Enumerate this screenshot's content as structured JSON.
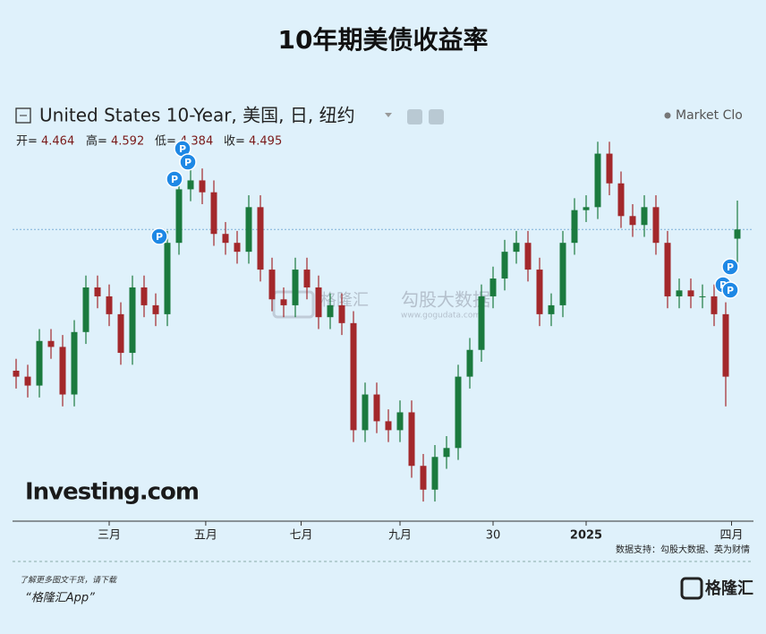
{
  "page_title": "10年期美债收益率",
  "chart_data": {
    "type": "candlestick",
    "header": "United States 10-Year, 美国, 日, 纽约",
    "status": "Market Clo",
    "ohlc_labels": {
      "open": "开=",
      "high": "高=",
      "low": "低=",
      "close": "收="
    },
    "up_color": "#1b7a3e",
    "down_color": "#a3282b",
    "last_price_line": true,
    "event_marker": "P",
    "source_logo": "Investing.com",
    "open": [
      4.02,
      4.0,
      3.97,
      4.12,
      4.1,
      3.94,
      4.15,
      4.3,
      4.27,
      4.21,
      4.08,
      4.3,
      4.24,
      4.21,
      4.45,
      4.63,
      4.66,
      4.62,
      4.48,
      4.45,
      4.42,
      4.57,
      4.36,
      4.26,
      4.24,
      4.36,
      4.3,
      4.2,
      4.24,
      4.18,
      3.82,
      3.94,
      3.85,
      3.82,
      3.88,
      3.7,
      3.62,
      3.73,
      3.76,
      4.0,
      4.09,
      4.27,
      4.33,
      4.42,
      4.45,
      4.36,
      4.21,
      4.24,
      4.45,
      4.56,
      4.57,
      4.75,
      4.65,
      4.54,
      4.51,
      4.57,
      4.45,
      4.27,
      4.29,
      4.27,
      4.27,
      4.21,
      4.464
    ],
    "high": [
      4.06,
      4.04,
      4.16,
      4.16,
      4.14,
      4.19,
      4.34,
      4.34,
      4.31,
      4.25,
      4.34,
      4.34,
      4.28,
      4.49,
      4.67,
      4.7,
      4.7,
      4.66,
      4.52,
      4.49,
      4.61,
      4.61,
      4.4,
      4.3,
      4.4,
      4.4,
      4.34,
      4.28,
      4.28,
      4.22,
      3.98,
      3.98,
      3.89,
      3.92,
      3.92,
      3.74,
      3.77,
      3.8,
      4.04,
      4.13,
      4.31,
      4.37,
      4.46,
      4.49,
      4.49,
      4.4,
      4.28,
      4.49,
      4.6,
      4.61,
      4.79,
      4.79,
      4.69,
      4.58,
      4.61,
      4.61,
      4.49,
      4.33,
      4.33,
      4.31,
      4.31,
      4.25,
      4.592
    ],
    "low": [
      3.96,
      3.93,
      3.93,
      4.06,
      3.9,
      3.9,
      4.11,
      4.23,
      4.17,
      4.04,
      4.04,
      4.2,
      4.17,
      4.17,
      4.41,
      4.59,
      4.58,
      4.44,
      4.41,
      4.38,
      4.38,
      4.32,
      4.22,
      4.2,
      4.2,
      4.26,
      4.16,
      4.16,
      4.14,
      3.78,
      3.78,
      3.81,
      3.78,
      3.78,
      3.66,
      3.58,
      3.58,
      3.69,
      3.72,
      3.96,
      4.05,
      4.23,
      4.29,
      4.38,
      4.32,
      4.17,
      4.17,
      4.2,
      4.41,
      4.52,
      4.53,
      4.61,
      4.5,
      4.47,
      4.47,
      4.41,
      4.23,
      4.23,
      4.23,
      4.23,
      4.17,
      3.9,
      4.384
    ],
    "close": [
      4.0,
      3.97,
      4.12,
      4.1,
      3.94,
      4.15,
      4.3,
      4.27,
      4.21,
      4.08,
      4.3,
      4.24,
      4.21,
      4.45,
      4.63,
      4.66,
      4.62,
      4.48,
      4.45,
      4.42,
      4.57,
      4.36,
      4.26,
      4.24,
      4.36,
      4.3,
      4.2,
      4.24,
      4.18,
      3.82,
      3.94,
      3.85,
      3.82,
      3.88,
      3.7,
      3.62,
      3.73,
      3.76,
      4.0,
      4.09,
      4.27,
      4.33,
      4.42,
      4.45,
      4.36,
      4.21,
      4.24,
      4.45,
      4.56,
      4.57,
      4.75,
      4.65,
      4.54,
      4.51,
      4.57,
      4.45,
      4.27,
      4.29,
      4.27,
      4.27,
      4.21,
      4.0,
      4.495
    ],
    "ylim": [
      3.52,
      4.83
    ],
    "xlim": [
      0,
      62
    ],
    "xticks": [
      {
        "value": 8,
        "label": "三月"
      },
      {
        "value": 16.3,
        "label": "五月"
      },
      {
        "value": 24.5,
        "label": "七月"
      },
      {
        "value": 33,
        "label": "九月"
      },
      {
        "value": 41,
        "label": "30"
      },
      {
        "value": 49,
        "label": "2025"
      },
      {
        "value": 61.5,
        "label": "四月"
      }
    ]
  },
  "watermark": {
    "brand": "格隆汇",
    "name": "勾股大数据",
    "url": "www.gogudata.com"
  },
  "footer": {
    "source": "数据支持：勾股大数据、英为财情",
    "promo": "了解更多图文干货，请下载",
    "app": "“格隆汇App”",
    "logo": "格隆汇"
  }
}
